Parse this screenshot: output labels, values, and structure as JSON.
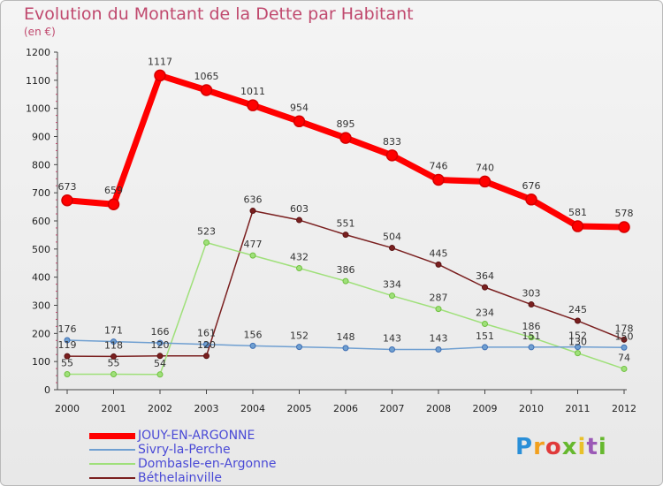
{
  "header": {
    "title": "Evolution du Montant de la Dette par Habitant",
    "subtitle": "(en €)"
  },
  "logo": {
    "text": "Proxiti"
  },
  "chart_data": {
    "type": "line",
    "title": "Evolution du Montant de la Dette par Habitant",
    "ylabel": "(en €)",
    "xlabel": "",
    "x": [
      "2000",
      "2001",
      "2002",
      "2003",
      "2004",
      "2005",
      "2006",
      "2007",
      "2008",
      "2009",
      "2010",
      "2011",
      "2012"
    ],
    "ylim": [
      0,
      1200
    ],
    "yticks": [
      0,
      100,
      200,
      300,
      400,
      500,
      600,
      700,
      800,
      900,
      1000,
      1100,
      1200
    ],
    "grid": false,
    "legend_position": "bottom-left",
    "series": [
      {
        "name": "JOUY-EN-ARGONNE",
        "color": "#ff0000",
        "marker": "#d40000",
        "values": [
          673,
          659,
          1117,
          1065,
          1011,
          954,
          895,
          833,
          746,
          740,
          676,
          581,
          578
        ],
        "labels": [
          "673",
          "659",
          "1117",
          "1065",
          "1011",
          "954",
          "895",
          "833",
          "746",
          "740",
          "676",
          "581",
          "578"
        ]
      },
      {
        "name": "Sivry-la-Perche",
        "color": "#6f9fd1",
        "marker": "#3f6fb3",
        "values": [
          176,
          171,
          166,
          161,
          156,
          152,
          148,
          143,
          143,
          151,
          151,
          152,
          150
        ],
        "labels": [
          "176",
          "171",
          "166",
          "161",
          "156",
          "152",
          "148",
          "143",
          "143",
          "151",
          "151",
          "152",
          "150"
        ]
      },
      {
        "name": "Dombasle-en-Argonne",
        "color": "#9fe07a",
        "marker": "#6fc03f",
        "values": [
          55,
          55,
          54,
          523,
          477,
          432,
          386,
          334,
          287,
          234,
          186,
          130,
          74
        ],
        "labels": [
          "55",
          "55",
          "54",
          "523",
          "477",
          "432",
          "386",
          "334",
          "287",
          "234",
          "186",
          "130",
          "74"
        ]
      },
      {
        "name": "Béthelainville",
        "color": "#7a1f1f",
        "marker": "#5a1414",
        "values": [
          119,
          118,
          120,
          120,
          636,
          603,
          551,
          504,
          445,
          364,
          303,
          245,
          178
        ],
        "labels": [
          "119",
          "118",
          "120",
          "120",
          "636",
          "603",
          "551",
          "504",
          "445",
          "364",
          "303",
          "245",
          "178"
        ]
      }
    ]
  }
}
